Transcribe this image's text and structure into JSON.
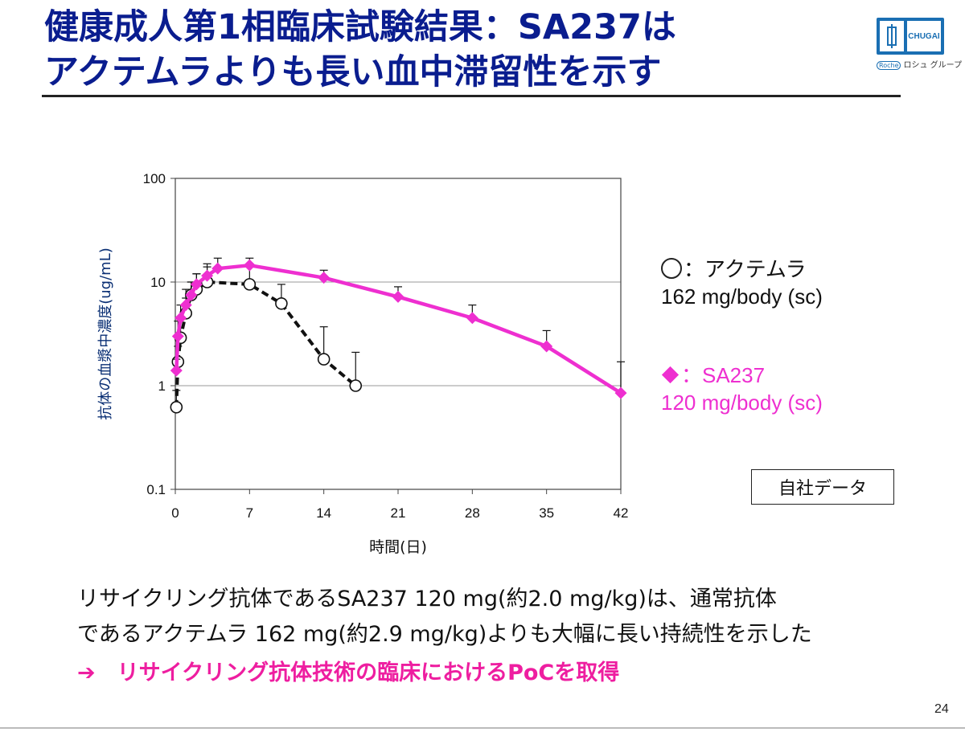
{
  "slide": {
    "title_line1": "健康成人第1相臨床試験結果：SA237は",
    "title_line2": "アクテムラよりも長い血中滞留性を示す",
    "logo_text": "CHUGAI",
    "logo_sub_roche": "Roche",
    "logo_sub_group": "ロシュ グループ",
    "note": "自社データ",
    "body_line1": "リサイクリング抗体であるSA237 120 mg(約2.0 mg/kg)は、通常抗体",
    "body_line2": "であるアクテムラ 162 mg(約2.9 mg/kg)よりも大幅に長い持続性を示した",
    "conclusion": "➔　リサイクリング抗体技術の臨床におけるPoCを取得",
    "page_number": "24",
    "colors": {
      "title": "#0a1d8f",
      "sa237": "#ee2fd0",
      "conclusion": "#ee1ea0",
      "logo": "#1a6fb3"
    }
  },
  "legend": {
    "actemra_label": "：アクテムラ",
    "actemra_dose": "162 mg/body (sc)",
    "sa237_label": "：SA237",
    "sa237_dose": "120 mg/body (sc)"
  },
  "chart_data": {
    "type": "line",
    "xlabel": "時間(日)",
    "ylabel": "抗体の血漿中濃度(ug/mL)",
    "xlim": [
      0,
      42
    ],
    "ylim": [
      0.1,
      100
    ],
    "yscale": "log",
    "x_ticks": [
      0,
      7,
      14,
      21,
      28,
      35,
      42
    ],
    "x_tick_labels": [
      "0",
      "7",
      "14",
      "21",
      "28",
      "35",
      "42"
    ],
    "y_ticks": [
      0.1,
      1,
      10,
      100
    ],
    "y_tick_labels": [
      "0.1",
      "1",
      "10",
      "100"
    ],
    "grid": "horizontal",
    "series": [
      {
        "name": "アクテムラ",
        "color": "#111111",
        "line_style": "dashed",
        "marker": "circle-open",
        "x": [
          0.1,
          0.25,
          0.5,
          1,
          1.5,
          2,
          3,
          7,
          10,
          14,
          17
        ],
        "y": [
          0.62,
          1.7,
          2.9,
          5.0,
          7.5,
          8.5,
          10.0,
          9.5,
          6.2,
          1.8,
          1.0
        ],
        "error_upper": [
          0.9,
          2.4,
          4.5,
          7.0,
          10.0,
          12.0,
          14.0,
          14.0,
          9.5,
          3.7,
          2.1
        ]
      },
      {
        "name": "SA237",
        "color": "#ee2fd0",
        "line_style": "solid",
        "marker": "diamond",
        "x": [
          0.1,
          0.25,
          0.5,
          1,
          1.5,
          2,
          3,
          4,
          7,
          14,
          21,
          28,
          35,
          42
        ],
        "y": [
          1.4,
          3.0,
          4.5,
          6.0,
          7.5,
          9.5,
          11.5,
          13.5,
          14.5,
          11.0,
          7.2,
          4.5,
          2.4,
          0.85
        ],
        "error_upper": [
          1.8,
          4.2,
          6.0,
          8.5,
          10.0,
          12.0,
          15.0,
          17.0,
          17.0,
          13.0,
          9.0,
          6.0,
          3.4,
          1.7
        ]
      }
    ]
  }
}
